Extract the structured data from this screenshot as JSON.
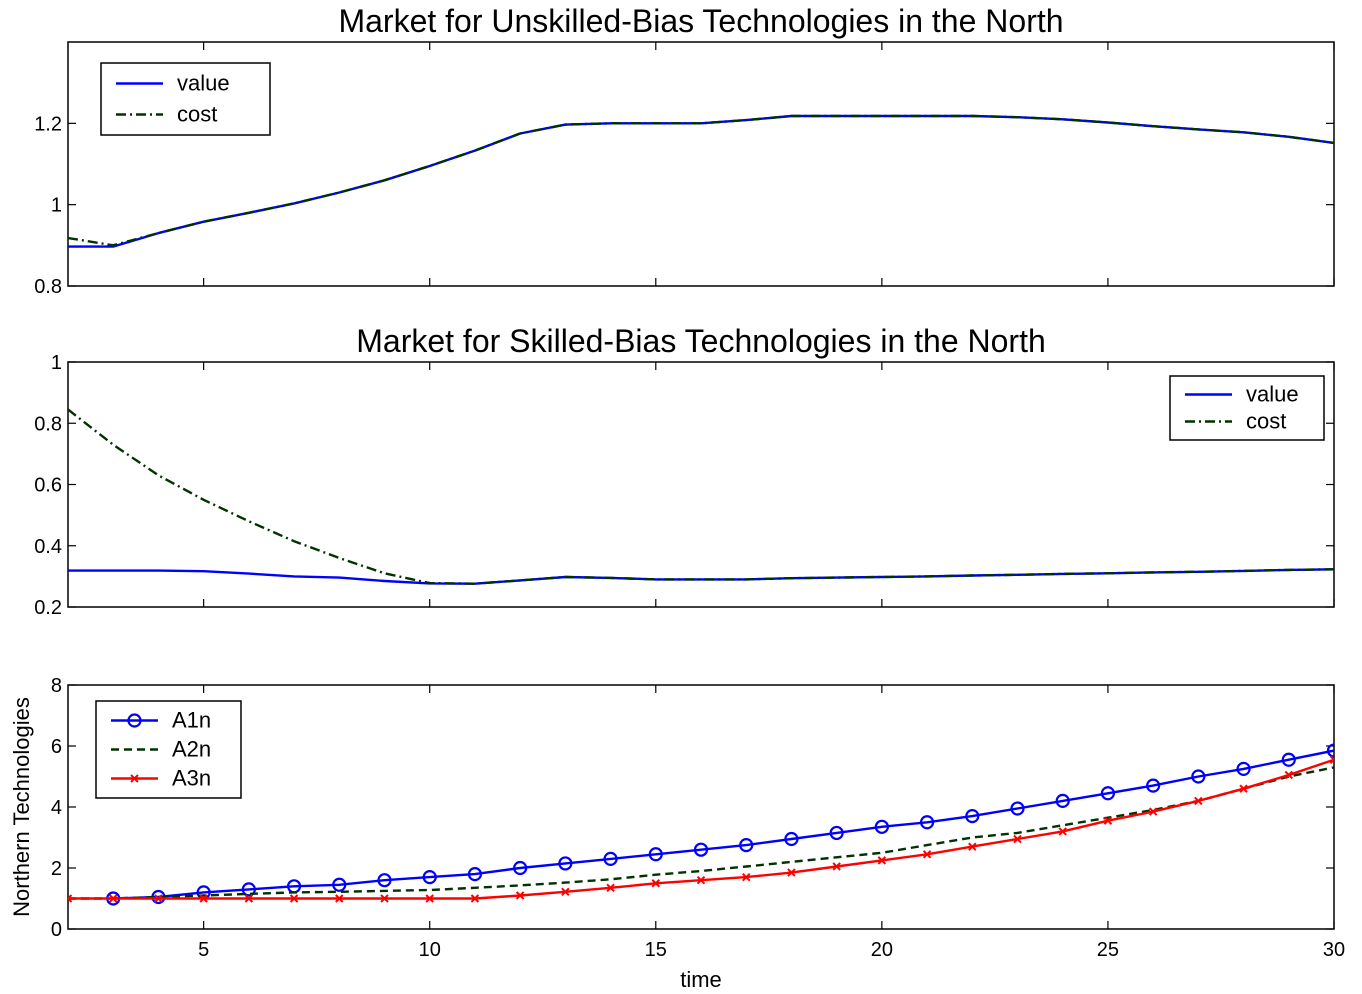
{
  "chart_data": [
    {
      "type": "line",
      "title": "Market for Unskilled-Bias Technologies in the North",
      "xlabel": "",
      "ylabel": "",
      "xlim": [
        2,
        30
      ],
      "ylim": [
        0.8,
        1.4
      ],
      "xticks": [
        5,
        10,
        15,
        20,
        25,
        30
      ],
      "yticks": [
        0.8,
        1,
        1.2
      ],
      "ytick_labels": [
        "0.8",
        "1",
        "1.2"
      ],
      "xtick_labels_shown": false,
      "legend_position": "top-left",
      "series": [
        {
          "name": "value",
          "color": "#0000ff",
          "style": "solid",
          "marker": "none",
          "x": [
            2,
            3,
            4,
            5,
            6,
            7,
            8,
            9,
            10,
            11,
            12,
            13,
            14,
            15,
            16,
            17,
            18,
            19,
            20,
            21,
            22,
            23,
            24,
            25,
            26,
            27,
            28,
            29,
            30
          ],
          "y": [
            0.897,
            0.897,
            0.93,
            0.958,
            0.98,
            1.003,
            1.03,
            1.06,
            1.095,
            1.133,
            1.175,
            1.197,
            1.2,
            1.2,
            1.2,
            1.208,
            1.218,
            1.218,
            1.218,
            1.218,
            1.218,
            1.215,
            1.21,
            1.202,
            1.193,
            1.185,
            1.178,
            1.167,
            1.152
          ]
        },
        {
          "name": "cost",
          "color": "#003300",
          "style": "dashdot",
          "marker": "none",
          "x": [
            2,
            3,
            4,
            5,
            6,
            7,
            8,
            9,
            10,
            11,
            12,
            13,
            14,
            15,
            16,
            17,
            18,
            19,
            20,
            21,
            22,
            23,
            24,
            25,
            26,
            27,
            28,
            29,
            30
          ],
          "y": [
            0.918,
            0.9,
            0.93,
            0.958,
            0.98,
            1.003,
            1.03,
            1.06,
            1.095,
            1.133,
            1.175,
            1.197,
            1.2,
            1.2,
            1.2,
            1.208,
            1.218,
            1.218,
            1.218,
            1.218,
            1.218,
            1.215,
            1.21,
            1.202,
            1.193,
            1.185,
            1.178,
            1.167,
            1.152
          ]
        }
      ]
    },
    {
      "type": "line",
      "title": "Market for Skilled-Bias Technologies in the North",
      "xlabel": "",
      "ylabel": "",
      "xlim": [
        2,
        30
      ],
      "ylim": [
        0.2,
        1.0
      ],
      "xticks": [
        5,
        10,
        15,
        20,
        25,
        30
      ],
      "yticks": [
        0.2,
        0.4,
        0.6,
        0.8,
        1
      ],
      "ytick_labels": [
        "0.2",
        "0.4",
        "0.6",
        "0.8",
        "1"
      ],
      "xtick_labels_shown": false,
      "legend_position": "top-right",
      "series": [
        {
          "name": "value",
          "color": "#0000ff",
          "style": "solid",
          "marker": "none",
          "x": [
            2,
            3,
            4,
            5,
            6,
            7,
            8,
            9,
            10,
            11,
            12,
            13,
            14,
            15,
            16,
            17,
            18,
            19,
            20,
            21,
            22,
            23,
            24,
            25,
            26,
            27,
            28,
            29,
            30
          ],
          "y": [
            0.319,
            0.319,
            0.319,
            0.317,
            0.309,
            0.3,
            0.296,
            0.285,
            0.277,
            0.276,
            0.287,
            0.298,
            0.295,
            0.29,
            0.29,
            0.29,
            0.294,
            0.296,
            0.298,
            0.3,
            0.303,
            0.305,
            0.308,
            0.31,
            0.313,
            0.315,
            0.318,
            0.321,
            0.323
          ]
        },
        {
          "name": "cost",
          "color": "#003300",
          "style": "dashdot",
          "marker": "none",
          "x": [
            2,
            3,
            4,
            5,
            6,
            7,
            8,
            9,
            10,
            11,
            12,
            13,
            14,
            15,
            16,
            17,
            18,
            19,
            20,
            21,
            22,
            23,
            24,
            25,
            26,
            27,
            28,
            29,
            30
          ],
          "y": [
            0.845,
            0.73,
            0.63,
            0.55,
            0.48,
            0.415,
            0.36,
            0.31,
            0.278,
            0.276,
            0.287,
            0.298,
            0.295,
            0.29,
            0.29,
            0.29,
            0.294,
            0.296,
            0.298,
            0.3,
            0.303,
            0.305,
            0.308,
            0.31,
            0.313,
            0.315,
            0.318,
            0.321,
            0.323
          ]
        }
      ]
    },
    {
      "type": "line",
      "title": "",
      "xlabel": "time",
      "ylabel": "Northern Technologies",
      "xlim": [
        2,
        30
      ],
      "ylim": [
        0,
        8
      ],
      "xticks": [
        5,
        10,
        15,
        20,
        25,
        30
      ],
      "yticks": [
        0,
        2,
        4,
        6,
        8
      ],
      "ytick_labels": [
        "0",
        "2",
        "4",
        "6",
        "8"
      ],
      "xtick_labels_shown": true,
      "legend_position": "top-left",
      "series": [
        {
          "name": "A1n",
          "color": "#0000ff",
          "style": "solid",
          "marker": "circle",
          "x": [
            3,
            4,
            5,
            6,
            7,
            8,
            9,
            10,
            11,
            12,
            13,
            14,
            15,
            16,
            17,
            18,
            19,
            20,
            21,
            22,
            23,
            24,
            25,
            26,
            27,
            28,
            29,
            30
          ],
          "y": [
            1.0,
            1.05,
            1.2,
            1.3,
            1.4,
            1.45,
            1.6,
            1.7,
            1.8,
            2.0,
            2.15,
            2.3,
            2.45,
            2.6,
            2.75,
            2.95,
            3.15,
            3.35,
            3.5,
            3.7,
            3.95,
            4.2,
            4.45,
            4.7,
            5.0,
            5.25,
            5.55,
            5.85
          ]
        },
        {
          "name": "A2n",
          "color": "#003300",
          "style": "dashed",
          "marker": "none",
          "x": [
            2,
            3,
            4,
            5,
            6,
            7,
            8,
            9,
            10,
            11,
            12,
            13,
            14,
            15,
            16,
            17,
            18,
            19,
            20,
            21,
            22,
            23,
            24,
            25,
            26,
            27,
            28,
            29,
            30
          ],
          "y": [
            1.0,
            1.0,
            1.05,
            1.1,
            1.15,
            1.2,
            1.22,
            1.25,
            1.28,
            1.35,
            1.43,
            1.52,
            1.63,
            1.78,
            1.9,
            2.05,
            2.2,
            2.35,
            2.5,
            2.75,
            3.0,
            3.15,
            3.4,
            3.65,
            3.9,
            4.2,
            4.6,
            5.0,
            5.3
          ]
        },
        {
          "name": "A3n",
          "color": "#ff0000",
          "style": "solid",
          "marker": "x",
          "x": [
            2,
            3,
            4,
            5,
            6,
            7,
            8,
            9,
            10,
            11,
            12,
            13,
            14,
            15,
            16,
            17,
            18,
            19,
            20,
            21,
            22,
            23,
            24,
            25,
            26,
            27,
            28,
            29,
            30
          ],
          "y": [
            1.0,
            1.0,
            1.0,
            1.0,
            1.0,
            1.0,
            1.0,
            1.0,
            1.0,
            1.0,
            1.1,
            1.22,
            1.35,
            1.5,
            1.6,
            1.7,
            1.85,
            2.05,
            2.25,
            2.45,
            2.7,
            2.95,
            3.2,
            3.55,
            3.85,
            4.2,
            4.6,
            5.05,
            5.55
          ]
        }
      ]
    }
  ]
}
